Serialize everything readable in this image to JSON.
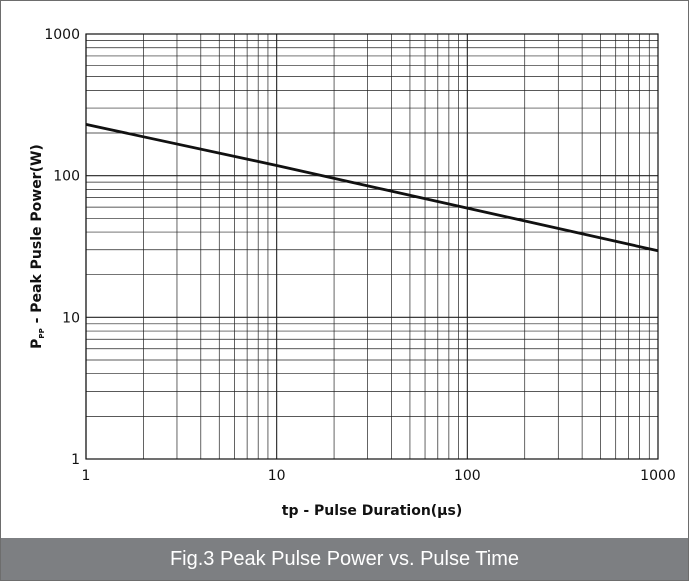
{
  "chart_data": {
    "type": "line",
    "x_scale": "log",
    "y_scale": "log",
    "xlim": [
      1,
      1000
    ],
    "ylim": [
      1,
      1000
    ],
    "x_ticks": [
      "1",
      "10",
      "100",
      "1000"
    ],
    "y_ticks": [
      "1",
      "10",
      "100",
      "1000"
    ],
    "grid": true,
    "ylabel_main": "P",
    "ylabel_sub": "PP",
    "ylabel_rest": " - Peak Pusle Power(W)",
    "xlabel": "tp - Pulse Duration(μs)",
    "series": [
      {
        "x": [
          1,
          10,
          100,
          1000
        ],
        "y": [
          230,
          118,
          59,
          29.5
        ]
      }
    ]
  },
  "caption": "Fig.3 Peak Pulse Power vs. Pulse Time",
  "colors": {
    "line": "#111111",
    "grid": "#222222",
    "caption_bg": "#7d7f82",
    "caption_text": "#ffffff"
  }
}
